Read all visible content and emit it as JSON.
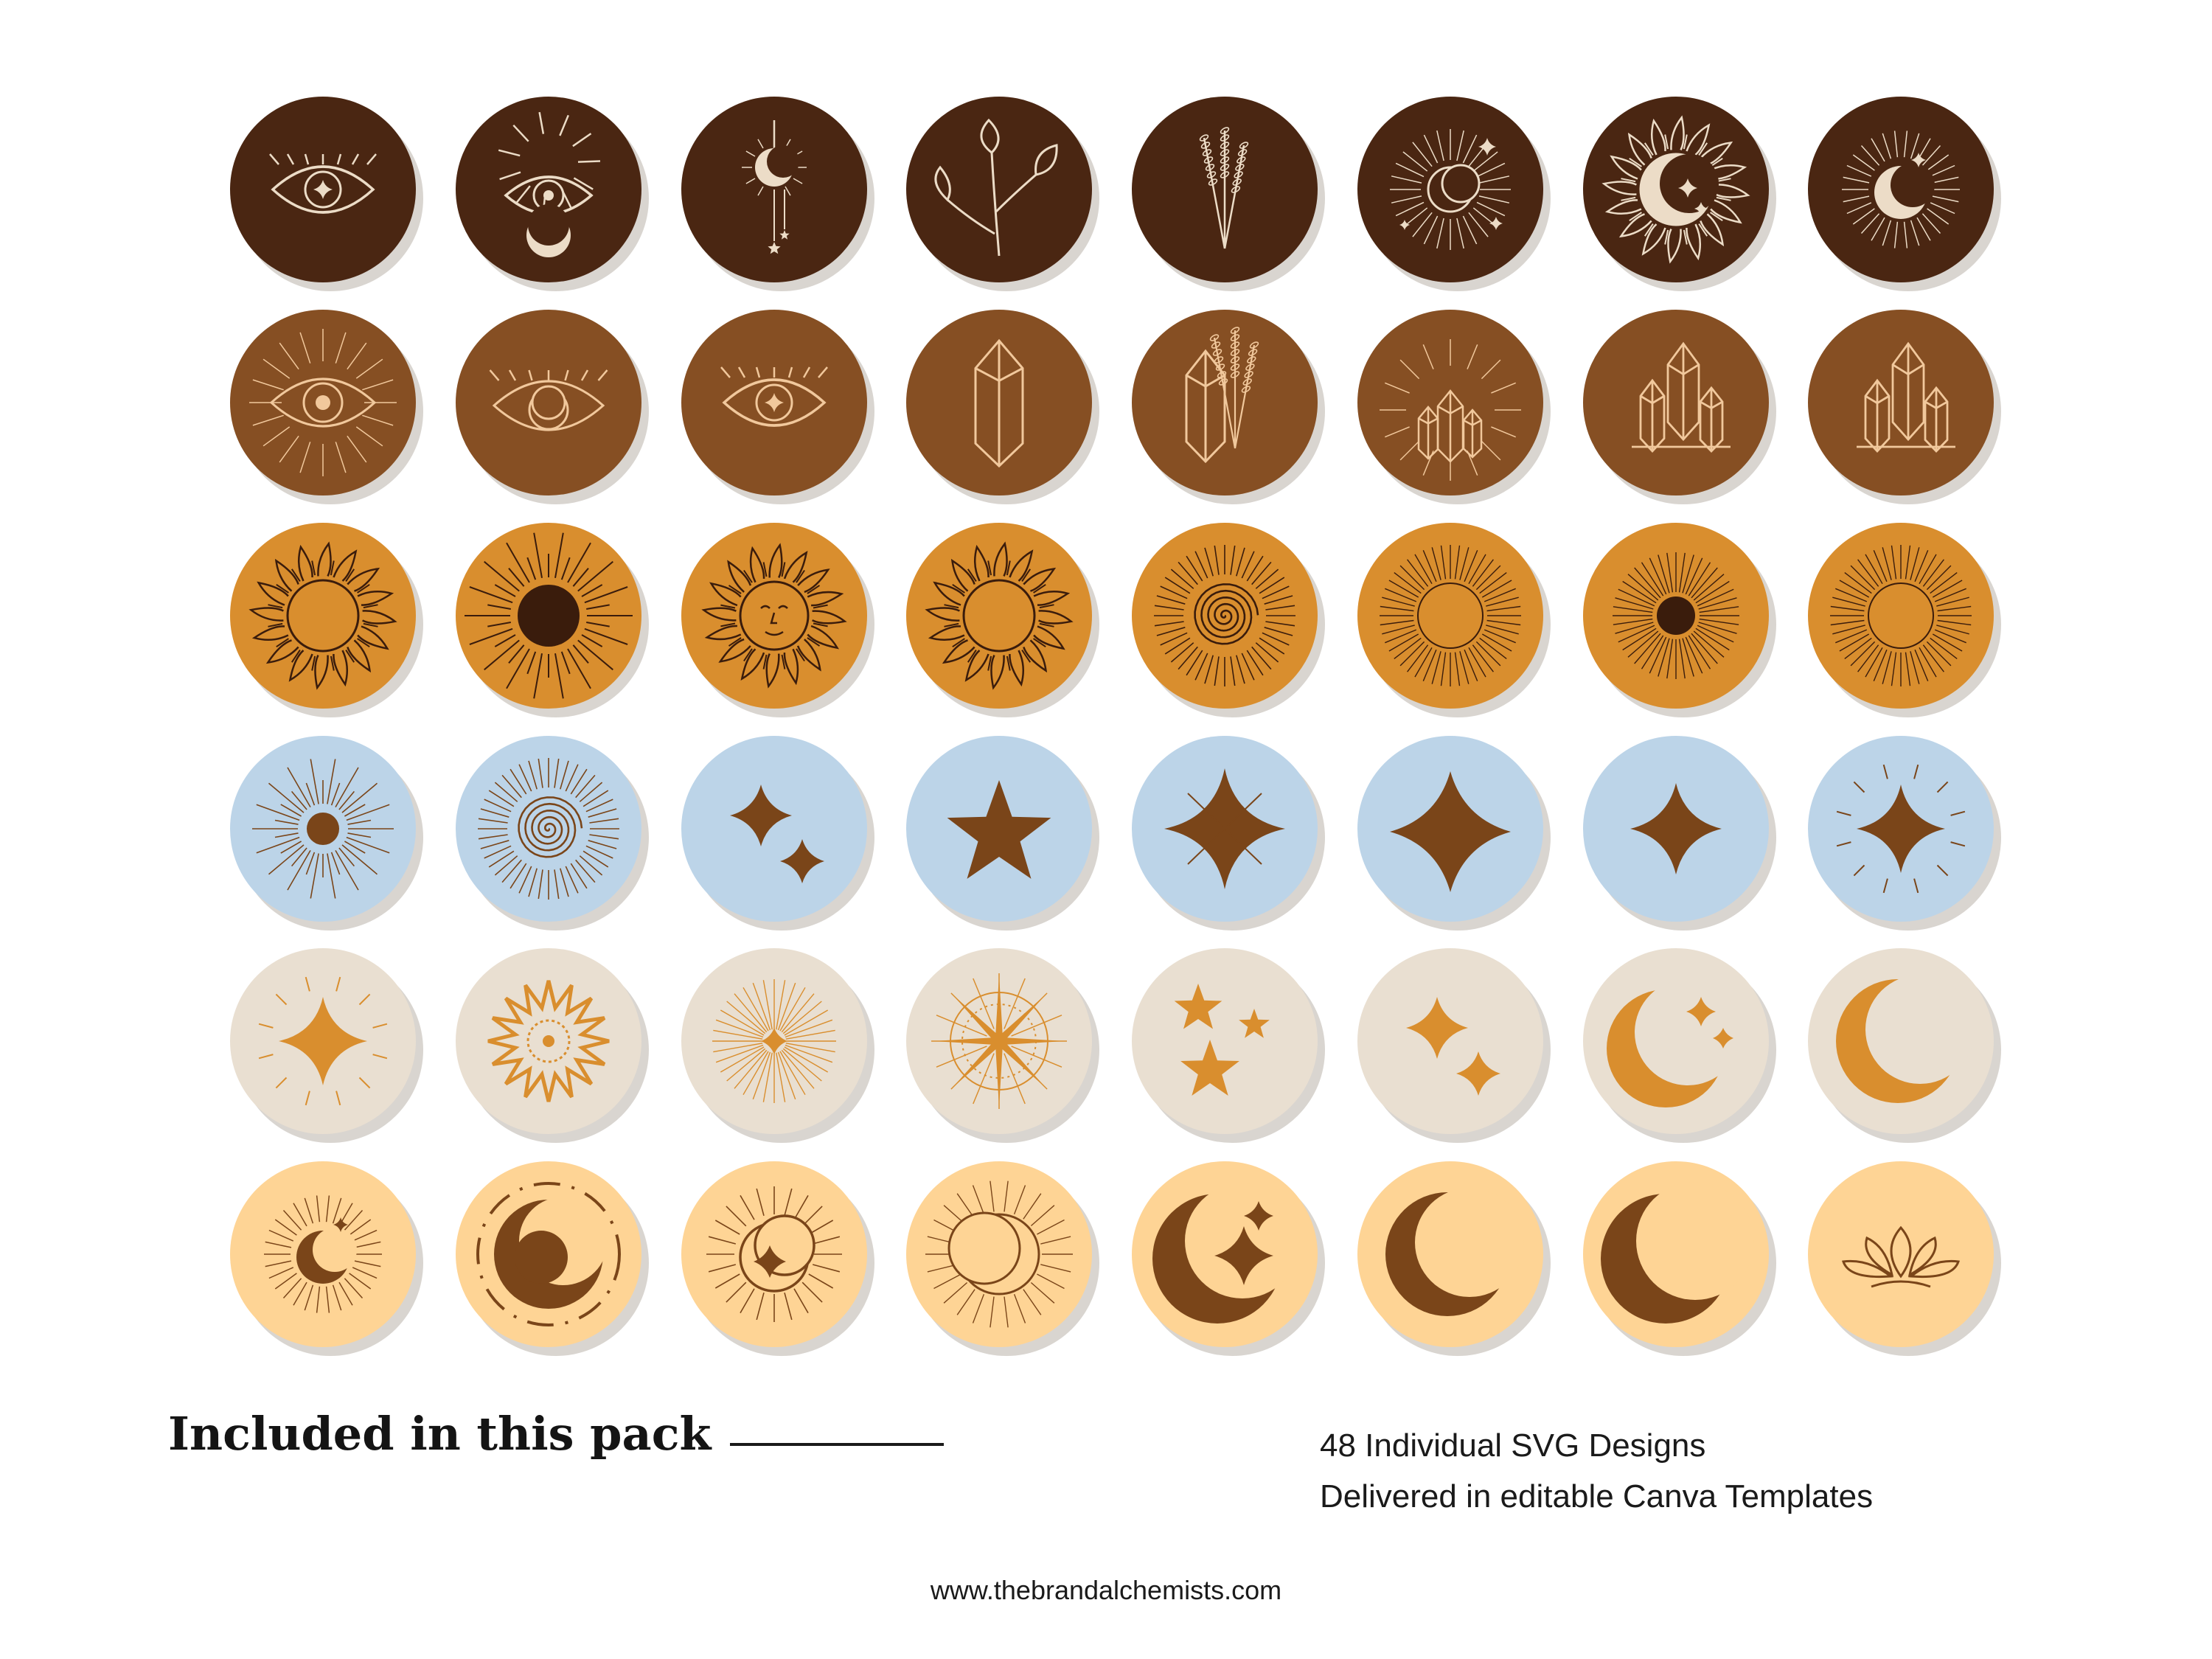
{
  "colors": {
    "row_backgrounds": [
      "#4a2612",
      "#864f23",
      "#d98e2e",
      "#bcd4e8",
      "#e9dfd1",
      "#fed495"
    ],
    "row_ink": [
      "#ecdcc7",
      "#f1c89c",
      "#3a1c0c",
      "#7a4519",
      "#d98e2e",
      "#7a4519"
    ]
  },
  "icon_rows": [
    [
      "eye-icon",
      "mystic-eye-icon",
      "hanging-moon-icon",
      "leaf-sprig-icon",
      "lavender-icon",
      "moon-burst-icon",
      "sun-moon-icon",
      "crescent-burst-icon"
    ],
    [
      "radiant-eye-icon",
      "moon-eye-icon",
      "eye-icon",
      "crystal-icon",
      "crystal-lavender-icon",
      "crystal-burst-icon",
      "crystal-cluster-icon",
      "crystal-cluster-icon"
    ],
    [
      "flame-sun-icon",
      "dark-sun-icon",
      "sun-face-icon",
      "flame-sun-icon",
      "spiral-sun-icon",
      "ray-sun-icon",
      "dark-dot-sun-icon",
      "ray-sun-icon"
    ],
    [
      "dot-sun-icon",
      "spiral-sun-icon",
      "twin-sparkle-icon",
      "star-icon",
      "sparkle-rays-icon",
      "sparkle-icon",
      "small-sparkle-icon",
      "sparkle-burst-icon"
    ],
    [
      "sparkle-burst-icon",
      "spiky-sun-icon",
      "star-burst-icon",
      "compass-star-icon",
      "three-stars-icon",
      "twin-sparkle-icon",
      "moon-sparkles-icon",
      "crescent-icon"
    ],
    [
      "crescent-burst-icon",
      "moon-ring-icon",
      "moon-star-burst-icon",
      "outline-moon-icon",
      "moon-star-icon",
      "crescent-icon",
      "thin-crescent-icon",
      "lotus-icon"
    ]
  ],
  "footer": {
    "heading": "Included in this pack",
    "features": [
      "48 Individual SVG Designs",
      "Delivered in editable Canva Templates"
    ],
    "website": "www.thebrandalchemists.com"
  }
}
